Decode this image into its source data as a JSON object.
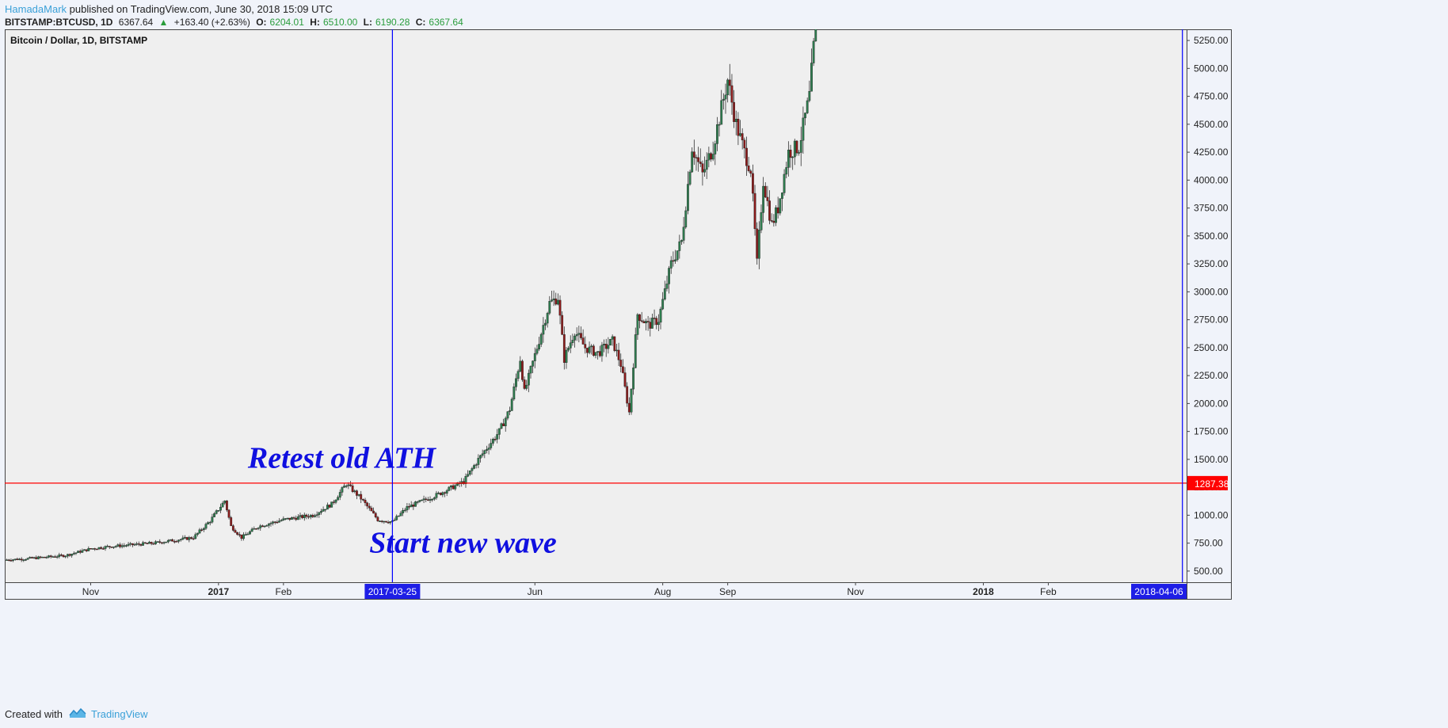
{
  "header": {
    "author": "HamadaMark",
    "published": "published on TradingView.com, June 30, 2018 15:09 UTC",
    "symbol": "BITSTAMP:BTCUSD, 1D",
    "last": "6367.64",
    "change": "+163.40 (+2.63%)",
    "o_label": "O:",
    "o_value": "6204.01",
    "h_label": "H:",
    "h_value": "6510.00",
    "l_label": "L:",
    "l_value": "6190.28",
    "c_label": "C:",
    "c_value": "6367.64"
  },
  "footer": {
    "created_with": "Created with",
    "brand": "TradingView"
  },
  "chart_data": {
    "type": "candlestick",
    "title": "Bitcoin / Dollar, 1D, BITSTAMP",
    "ylim": [
      400,
      5350
    ],
    "y_ticks": [
      500,
      750,
      1000,
      1250,
      1500,
      1750,
      2000,
      2250,
      2500,
      2750,
      3000,
      3250,
      3500,
      3750,
      4000,
      4250,
      4500,
      4750,
      5000,
      5250
    ],
    "x_ticks": [
      {
        "label": "Nov",
        "date": "2016-11-01",
        "bold": false
      },
      {
        "label": "2017",
        "date": "2017-01-01",
        "bold": true
      },
      {
        "label": "Feb",
        "date": "2017-02-01",
        "bold": false
      },
      {
        "label": "Jun",
        "date": "2017-06-01",
        "bold": false
      },
      {
        "label": "Aug",
        "date": "2017-08-01",
        "bold": false
      },
      {
        "label": "Sep",
        "date": "2017-09-01",
        "bold": false
      },
      {
        "label": "Nov",
        "date": "2017-11-01",
        "bold": false
      },
      {
        "label": "2018",
        "date": "2018-01-01",
        "bold": true
      },
      {
        "label": "Feb",
        "date": "2018-02-01",
        "bold": false
      }
    ],
    "x_range": [
      "2016-09-21",
      "2018-04-08"
    ],
    "horizontal_line": {
      "value": 1287.38,
      "label": "1287.38",
      "color": "#ff0000"
    },
    "vertical_lines": [
      {
        "date": "2017-03-25",
        "label": "2017-03-25",
        "color": "#0000ff"
      },
      {
        "date": "2018-04-06",
        "label": "2018-04-06",
        "color": "#0000ff"
      }
    ],
    "annotations": [
      {
        "text": "Retest old ATH",
        "date": "2017-01-15",
        "value": 1425
      },
      {
        "text": "Start new wave",
        "date": "2017-03-14",
        "value": 665
      }
    ],
    "series": [
      {
        "kind": "close_path",
        "points": [
          [
            "2016-09-21",
            600
          ],
          [
            "2016-10-01",
            610
          ],
          [
            "2016-10-20",
            640
          ],
          [
            "2016-11-01",
            700
          ],
          [
            "2016-11-10",
            720
          ],
          [
            "2016-12-01",
            750
          ],
          [
            "2016-12-20",
            800
          ],
          [
            "2016-12-28",
            950
          ],
          [
            "2017-01-04",
            1130
          ],
          [
            "2017-01-07",
            900
          ],
          [
            "2017-01-12",
            800
          ],
          [
            "2017-01-20",
            900
          ],
          [
            "2017-02-01",
            960
          ],
          [
            "2017-02-15",
            1000
          ],
          [
            "2017-02-24",
            1100
          ],
          [
            "2017-03-03",
            1280
          ],
          [
            "2017-03-10",
            1150
          ],
          [
            "2017-03-18",
            960
          ],
          [
            "2017-03-25",
            940
          ],
          [
            "2017-04-01",
            1070
          ],
          [
            "2017-04-15",
            1180
          ],
          [
            "2017-04-28",
            1300
          ],
          [
            "2017-05-05",
            1500
          ],
          [
            "2017-05-15",
            1750
          ],
          [
            "2017-05-20",
            1950
          ],
          [
            "2017-05-25",
            2400
          ],
          [
            "2017-05-27",
            2100
          ],
          [
            "2017-06-02",
            2500
          ],
          [
            "2017-06-08",
            2900
          ],
          [
            "2017-06-12",
            2950
          ],
          [
            "2017-06-15",
            2400
          ],
          [
            "2017-06-20",
            2650
          ],
          [
            "2017-06-25",
            2500
          ],
          [
            "2017-07-01",
            2450
          ],
          [
            "2017-07-08",
            2560
          ],
          [
            "2017-07-12",
            2350
          ],
          [
            "2017-07-16",
            1920
          ],
          [
            "2017-07-20",
            2800
          ],
          [
            "2017-07-25",
            2700
          ],
          [
            "2017-07-30",
            2750
          ],
          [
            "2017-08-05",
            3250
          ],
          [
            "2017-08-10",
            3450
          ],
          [
            "2017-08-15",
            4300
          ],
          [
            "2017-08-20",
            4050
          ],
          [
            "2017-08-25",
            4300
          ],
          [
            "2017-09-01",
            4900
          ],
          [
            "2017-09-05",
            4500
          ],
          [
            "2017-09-09",
            4250
          ],
          [
            "2017-09-12",
            4100
          ],
          [
            "2017-09-15",
            3250
          ],
          [
            "2017-09-18",
            4000
          ],
          [
            "2017-09-22",
            3600
          ],
          [
            "2017-09-25",
            3750
          ],
          [
            "2017-09-30",
            4250
          ],
          [
            "2017-10-05",
            4300
          ],
          [
            "2017-10-10",
            4750
          ],
          [
            "2017-10-13",
            5400
          ]
        ]
      }
    ]
  },
  "colors": {
    "up": "#2e7d4f",
    "down": "#8b1a1a",
    "grid_bg": "#efefef",
    "axis_label": "#1e1ee6",
    "annotation": "#1010e0"
  }
}
